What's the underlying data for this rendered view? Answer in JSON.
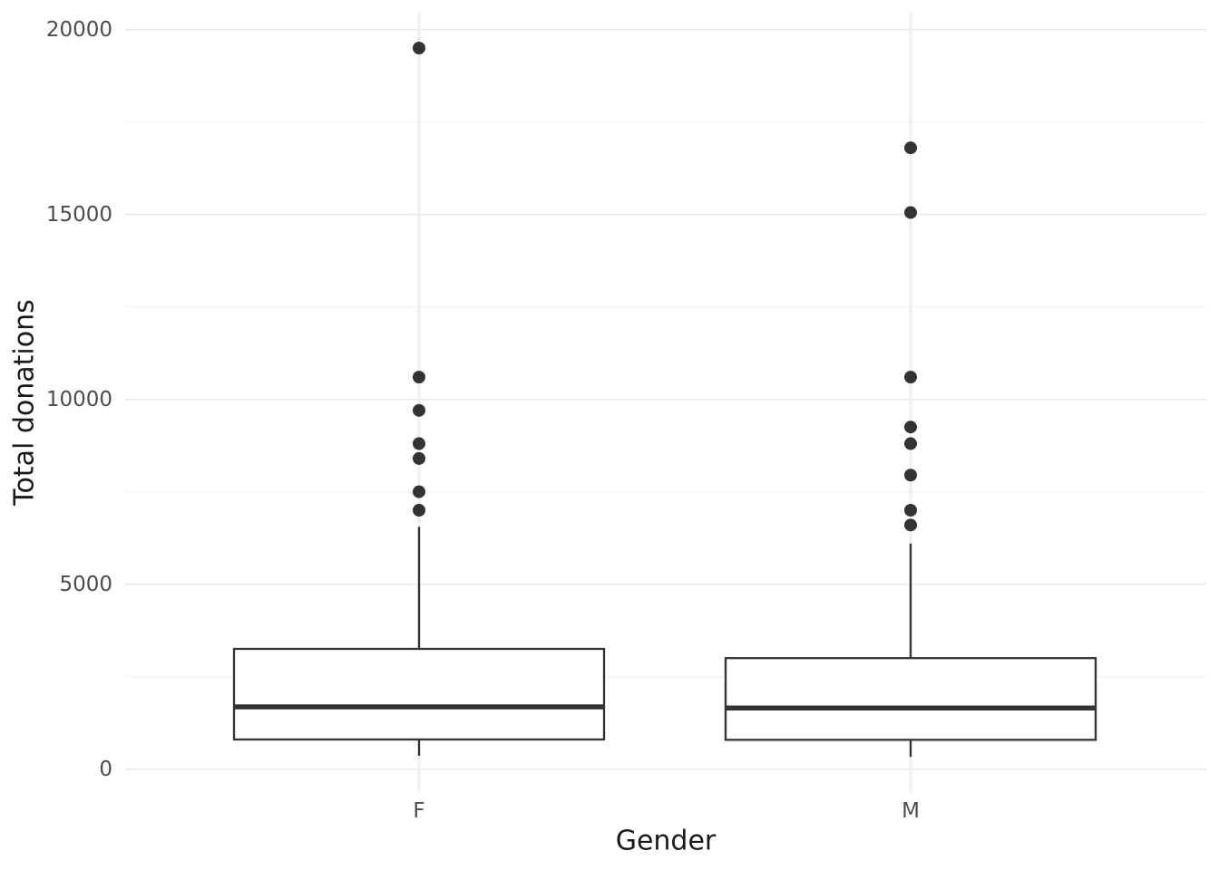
{
  "chart_data": {
    "type": "boxplot",
    "title": "",
    "xlabel": "Gender",
    "ylabel": "Total donations",
    "categories": [
      "F",
      "M"
    ],
    "yticks": [
      0,
      5000,
      10000,
      15000,
      20000
    ],
    "ytick_labels": [
      "0",
      "5000",
      "10000",
      "15000",
      "20000"
    ],
    "ylim": [
      0,
      20000
    ],
    "grid": true,
    "legend": false,
    "series": [
      {
        "category": "F",
        "whisker_low": 360,
        "q1": 800,
        "median": 1680,
        "q3": 3250,
        "whisker_high": 6550,
        "outliers": [
          7000,
          7500,
          8400,
          8800,
          9700,
          10600,
          19500
        ]
      },
      {
        "category": "M",
        "whisker_low": 330,
        "q1": 790,
        "median": 1650,
        "q3": 3000,
        "whisker_high": 6100,
        "outliers": [
          6600,
          7000,
          7950,
          8800,
          9250,
          10600,
          15050,
          16800
        ]
      }
    ],
    "colors": {
      "box_stroke": "#333333",
      "box_fill": "#ffffff",
      "median": "#333333",
      "point": "#333333",
      "grid_major": "#e9e9e9",
      "grid_minor": "#f3f3f3",
      "grid_vertical": "#efefef",
      "tick_label": "#4d4d4d",
      "axis_title": "#1a1a1a",
      "background": "#ffffff"
    }
  }
}
